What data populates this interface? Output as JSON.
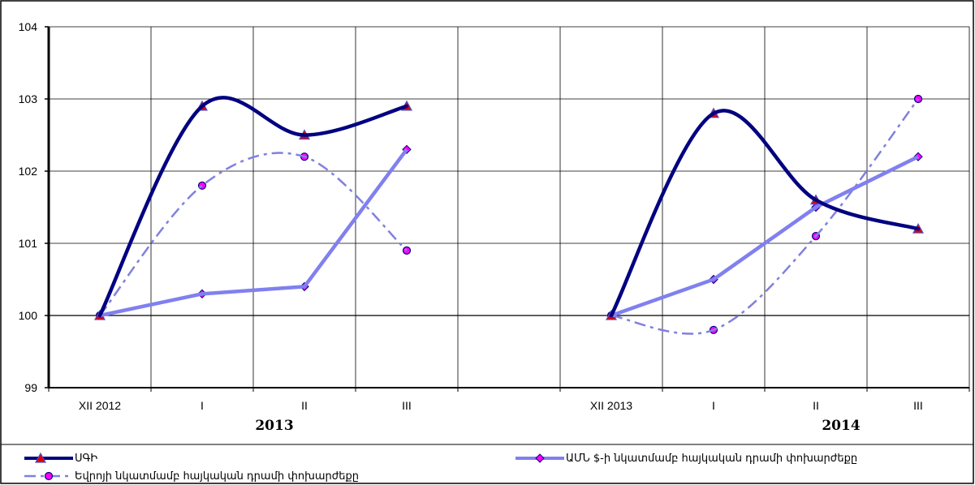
{
  "colors": {
    "cpi": "#000080",
    "usd": "#8080f0",
    "eur": "#8080e0",
    "triangle": "#e00000",
    "diamond": "#ff00ff",
    "circle": "#ff00ff"
  },
  "chart_data": {
    "type": "line",
    "ylim": [
      99,
      104
    ],
    "yticks": [
      "99",
      "100",
      "101",
      "102",
      "103",
      "104"
    ],
    "categories": [
      "XII 2012",
      "I",
      "II",
      "III",
      "",
      "XII 2013",
      "I",
      "II",
      "III"
    ],
    "year_labels": [
      "2013",
      "2014"
    ],
    "grid": true,
    "legend_placement": "bottom",
    "series": [
      {
        "name": "ՍԳԻ",
        "key": "cpi",
        "marker": "triangle",
        "segments": [
          {
            "x": [
              0,
              1,
              2,
              3
            ],
            "y": [
              100,
              102.9,
              102.5,
              102.9
            ]
          },
          {
            "x": [
              5,
              6,
              7,
              8
            ],
            "y": [
              100,
              102.8,
              101.6,
              101.2
            ]
          }
        ]
      },
      {
        "name": "ԱՄՆ $-ի նկատմամբ հայկական դրամի փոխարժեքը",
        "key": "usd",
        "marker": "diamond",
        "segments": [
          {
            "x": [
              0,
              1,
              2,
              3
            ],
            "y": [
              100,
              100.3,
              100.4,
              102.3
            ]
          },
          {
            "x": [
              5,
              6,
              7,
              8
            ],
            "y": [
              100,
              100.5,
              101.5,
              102.2
            ]
          }
        ]
      },
      {
        "name": "Եվրոյի նկատմամբ հայկական դրամի փոխարժեքը",
        "key": "eur",
        "marker": "circle",
        "segments": [
          {
            "x": [
              0,
              1,
              2,
              3
            ],
            "y": [
              100,
              101.8,
              102.2,
              100.9
            ]
          },
          {
            "x": [
              5,
              6,
              7,
              8
            ],
            "y": [
              100,
              99.8,
              101.1,
              103.0
            ]
          }
        ]
      }
    ]
  }
}
